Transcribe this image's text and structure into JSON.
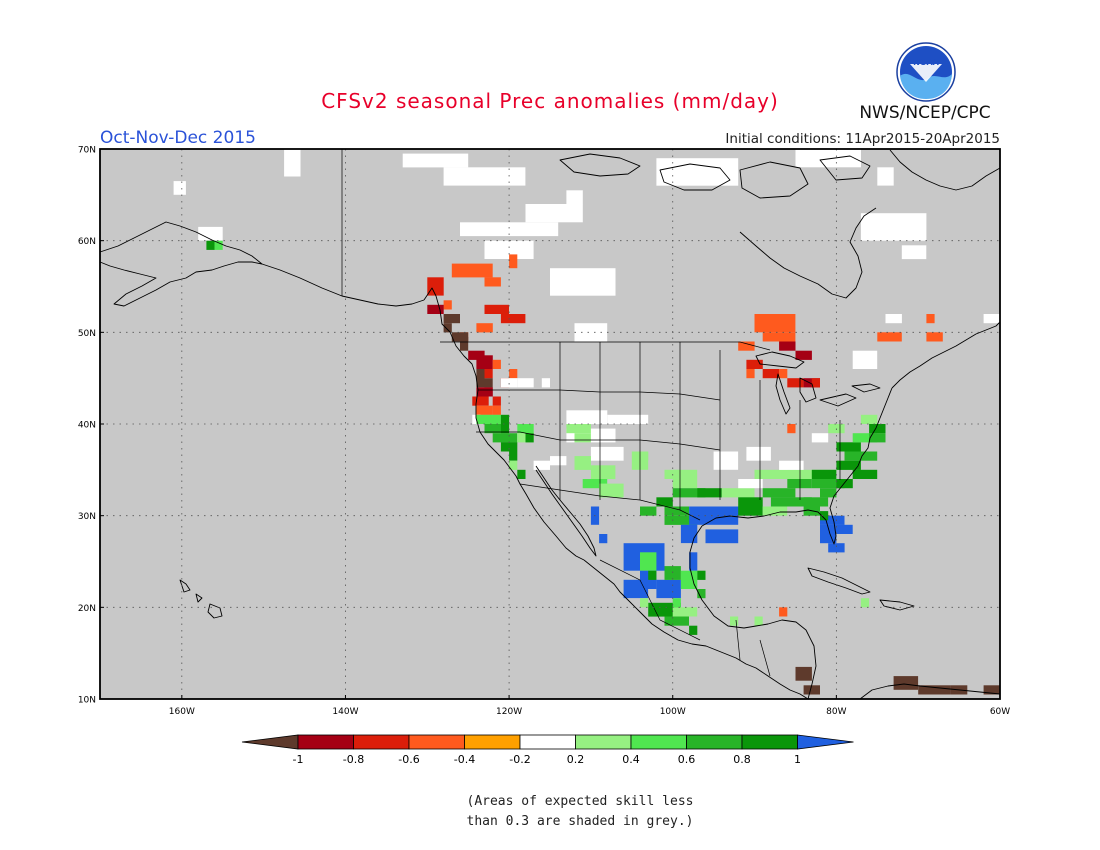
{
  "header": {
    "title": "CFSv2 seasonal Prec anomalies (mm/day)",
    "season": "Oct-Nov-Dec 2015",
    "initial_conditions": "Initial conditions: 11Apr2015-20Apr2015",
    "agency": "NWS/NCEP/CPC",
    "logo_text": "NOAA"
  },
  "map": {
    "lat_labels": [
      "70N",
      "60N",
      "50N",
      "40N",
      "30N",
      "20N",
      "10N"
    ],
    "lon_labels": [
      "160W",
      "140W",
      "120W",
      "100W",
      "80W",
      "60W"
    ],
    "lon_range": [
      -170,
      -60
    ],
    "lat_range": [
      10,
      70
    ]
  },
  "colorbar": {
    "labels": [
      "-1",
      "-0.8",
      "-0.6",
      "-0.4",
      "-0.2",
      "0.2",
      "0.4",
      "0.6",
      "0.8",
      "1"
    ],
    "colors": [
      "#5e3a2c",
      "#a50014",
      "#dc1e0a",
      "#ff5a1e",
      "#ffa000",
      "#ffffff",
      "#96f082",
      "#50e650",
      "#28b428",
      "#0a960a",
      "#2060e0"
    ]
  },
  "note": {
    "line1": "(Areas of expected skill less",
    "line2": "than 0.3 are shaded in grey.)"
  },
  "colors": {
    "background_grey": "#c8c8c8",
    "title_red": "#e8002a",
    "season_blue": "#2a52d8"
  }
}
